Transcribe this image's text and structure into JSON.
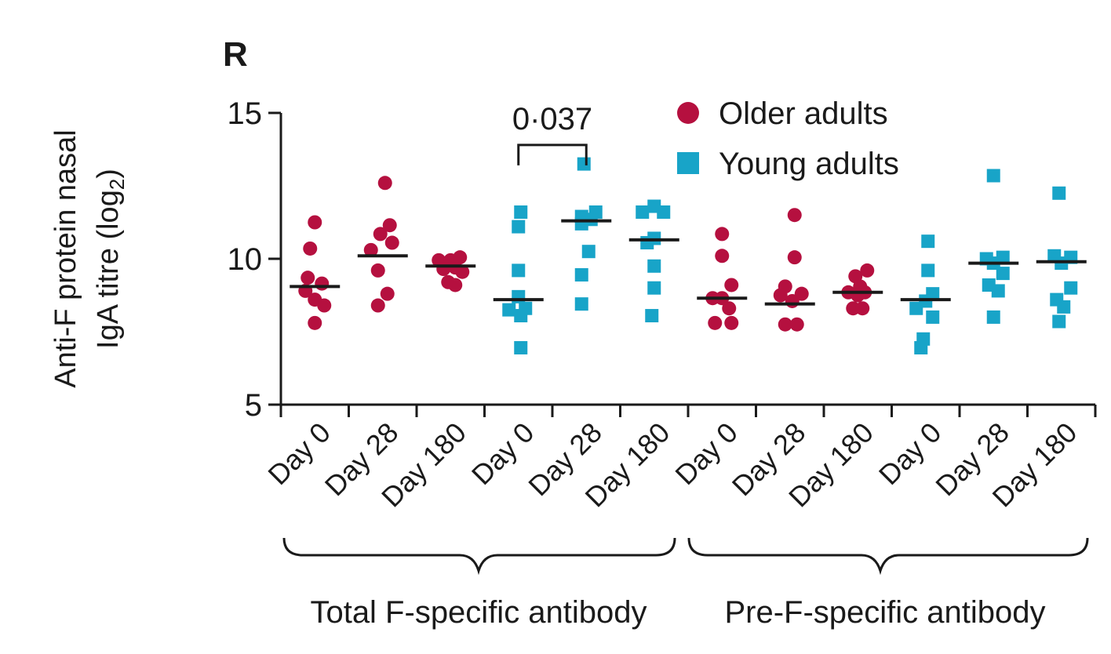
{
  "panel_label": "R",
  "colors": {
    "older": "#b5103f",
    "young": "#18a4c8",
    "median": "#1a1a1a"
  },
  "chart_data": {
    "type": "scatter",
    "ylabel_line1": "Anti-F protein nasal",
    "ylabel_line2_prefix": "IgA titre (log",
    "ylabel_line2_sub": "2",
    "ylabel_line2_suffix": ")",
    "ylim": [
      5,
      15
    ],
    "yticks": [
      5,
      10,
      15
    ],
    "ytick_labels": [
      "5",
      "10",
      "15"
    ],
    "categories": [
      "Day 0",
      "Day 28",
      "Day 180",
      "Day 0",
      "Day 28",
      "Day 180",
      "Day 0",
      "Day 28",
      "Day 180",
      "Day 0",
      "Day 28",
      "Day 180"
    ],
    "legend": [
      {
        "name": "Older adults",
        "marker": "circle",
        "color_key": "older"
      },
      {
        "name": "Young adults",
        "marker": "square",
        "color_key": "young"
      }
    ],
    "groups": [
      {
        "label": "Total F-specific antibody",
        "from": 0,
        "to": 5
      },
      {
        "label": "Pre-F-specific antibody",
        "from": 6,
        "to": 11
      }
    ],
    "annotation": {
      "text": "0·037",
      "from": 3,
      "to": 4,
      "y": 13.9
    },
    "series": [
      {
        "category_index": 0,
        "name": "Older adults",
        "marker": "circle",
        "median": 9.05,
        "points": [
          [
            0,
            11.25
          ],
          [
            -0.1,
            10.35
          ],
          [
            -0.15,
            9.35
          ],
          [
            0.15,
            9.15
          ],
          [
            -0.2,
            8.9
          ],
          [
            0.0,
            8.6
          ],
          [
            0.2,
            8.4
          ],
          [
            0.0,
            7.8
          ]
        ]
      },
      {
        "category_index": 1,
        "name": "Older adults",
        "marker": "circle",
        "median": 10.1,
        "points": [
          [
            0.05,
            12.6
          ],
          [
            0.15,
            11.15
          ],
          [
            -0.05,
            10.85
          ],
          [
            0.2,
            10.55
          ],
          [
            -0.25,
            10.3
          ],
          [
            -0.1,
            9.6
          ],
          [
            0.1,
            8.8
          ],
          [
            -0.1,
            8.4
          ]
        ]
      },
      {
        "category_index": 2,
        "name": "Older adults",
        "marker": "circle",
        "median": 9.75,
        "points": [
          [
            -0.25,
            9.95
          ],
          [
            0.0,
            9.95
          ],
          [
            0.2,
            10.05
          ],
          [
            -0.15,
            9.65
          ],
          [
            0.1,
            9.7
          ],
          [
            0.25,
            9.55
          ],
          [
            -0.05,
            9.2
          ],
          [
            0.1,
            9.1
          ]
        ]
      },
      {
        "category_index": 3,
        "name": "Young adults",
        "marker": "square",
        "median": 8.6,
        "points": [
          [
            0.05,
            11.6
          ],
          [
            0.0,
            11.1
          ],
          [
            0.0,
            9.6
          ],
          [
            0.0,
            8.7
          ],
          [
            -0.2,
            8.25
          ],
          [
            0.15,
            8.3
          ],
          [
            0.05,
            8.05
          ],
          [
            0.05,
            6.95
          ]
        ]
      },
      {
        "category_index": 4,
        "name": "Young adults",
        "marker": "square",
        "median": 11.3,
        "points": [
          [
            -0.05,
            13.25
          ],
          [
            0.2,
            11.6
          ],
          [
            -0.1,
            11.45
          ],
          [
            0.1,
            11.35
          ],
          [
            -0.1,
            11.2
          ],
          [
            0.05,
            10.25
          ],
          [
            -0.1,
            9.45
          ],
          [
            -0.1,
            8.45
          ]
        ]
      },
      {
        "category_index": 5,
        "name": "Young adults",
        "marker": "square",
        "median": 10.65,
        "points": [
          [
            -0.25,
            11.6
          ],
          [
            0.0,
            11.8
          ],
          [
            0.2,
            11.6
          ],
          [
            0.0,
            10.7
          ],
          [
            -0.15,
            10.55
          ],
          [
            0.0,
            9.75
          ],
          [
            0.0,
            9.0
          ],
          [
            -0.05,
            8.05
          ]
        ]
      },
      {
        "category_index": 6,
        "name": "Older adults",
        "marker": "circle",
        "median": 8.65,
        "points": [
          [
            0.0,
            10.85
          ],
          [
            0.0,
            10.1
          ],
          [
            0.2,
            9.1
          ],
          [
            -0.2,
            8.65
          ],
          [
            0.0,
            8.65
          ],
          [
            0.15,
            8.3
          ],
          [
            -0.15,
            7.8
          ],
          [
            0.2,
            7.8
          ]
        ]
      },
      {
        "category_index": 7,
        "name": "Older adults",
        "marker": "circle",
        "median": 8.45,
        "points": [
          [
            0.1,
            11.5
          ],
          [
            0.1,
            10.05
          ],
          [
            -0.1,
            9.05
          ],
          [
            0.25,
            8.8
          ],
          [
            -0.2,
            8.75
          ],
          [
            0.05,
            8.55
          ],
          [
            -0.1,
            7.75
          ],
          [
            0.15,
            7.75
          ]
        ]
      },
      {
        "category_index": 8,
        "name": "Older adults",
        "marker": "circle",
        "median": 8.85,
        "points": [
          [
            0.2,
            9.6
          ],
          [
            -0.05,
            9.4
          ],
          [
            0.05,
            9.05
          ],
          [
            -0.2,
            8.85
          ],
          [
            0.15,
            8.85
          ],
          [
            0.0,
            8.75
          ],
          [
            -0.1,
            8.3
          ],
          [
            0.1,
            8.3
          ]
        ]
      },
      {
        "category_index": 9,
        "name": "Young adults",
        "marker": "square",
        "median": 8.6,
        "points": [
          [
            0.05,
            10.6
          ],
          [
            0.05,
            9.6
          ],
          [
            0.15,
            8.8
          ],
          [
            -0.2,
            8.3
          ],
          [
            0.0,
            8.55
          ],
          [
            0.15,
            8.0
          ],
          [
            -0.05,
            7.25
          ],
          [
            -0.1,
            6.95
          ]
        ]
      },
      {
        "category_index": 10,
        "name": "Young adults",
        "marker": "square",
        "median": 9.85,
        "points": [
          [
            0.0,
            12.85
          ],
          [
            0.2,
            10.05
          ],
          [
            -0.15,
            10.0
          ],
          [
            0.0,
            9.85
          ],
          [
            0.2,
            9.5
          ],
          [
            -0.1,
            9.1
          ],
          [
            0.1,
            8.9
          ],
          [
            0.0,
            8.0
          ]
        ]
      },
      {
        "category_index": 11,
        "name": "Young adults",
        "marker": "square",
        "median": 9.9,
        "points": [
          [
            -0.05,
            12.25
          ],
          [
            0.2,
            10.05
          ],
          [
            -0.15,
            10.1
          ],
          [
            0.0,
            9.85
          ],
          [
            0.2,
            9.0
          ],
          [
            -0.1,
            8.6
          ],
          [
            0.05,
            8.35
          ],
          [
            -0.05,
            7.85
          ]
        ]
      }
    ]
  }
}
